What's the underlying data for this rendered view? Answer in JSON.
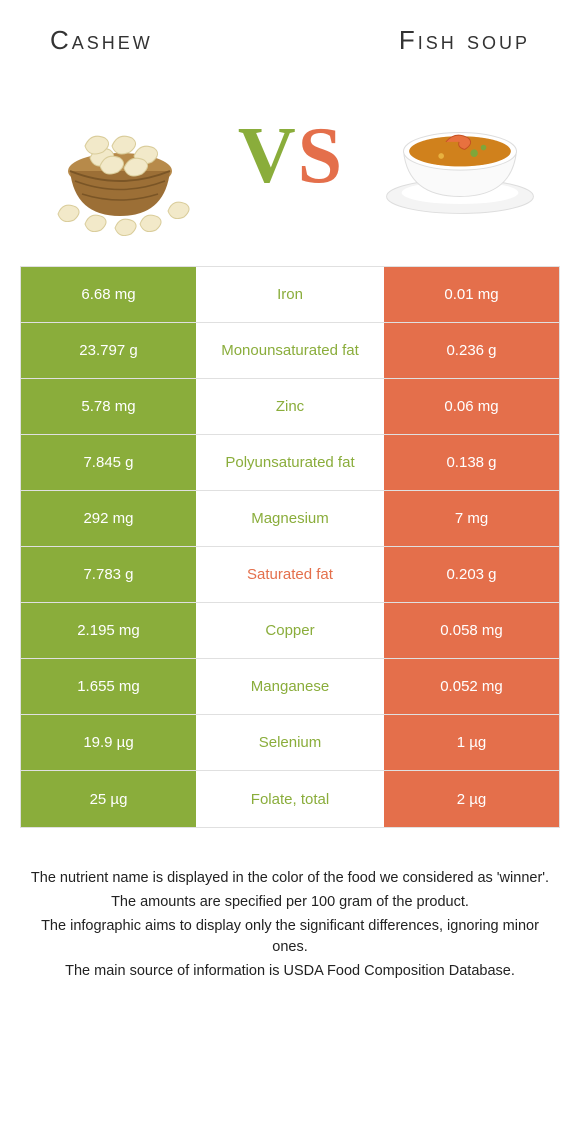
{
  "colors": {
    "left": "#8aad3b",
    "right": "#e46f4b",
    "vs_v": "#8aad3b",
    "vs_s": "#e46f4b"
  },
  "header": {
    "left_title": "Cashew",
    "right_title": "Fish soup"
  },
  "rows": [
    {
      "left": "6.68 mg",
      "mid": "Iron",
      "right": "0.01 mg",
      "winner": "left"
    },
    {
      "left": "23.797 g",
      "mid": "Monounsaturated fat",
      "right": "0.236 g",
      "winner": "left"
    },
    {
      "left": "5.78 mg",
      "mid": "Zinc",
      "right": "0.06 mg",
      "winner": "left"
    },
    {
      "left": "7.845 g",
      "mid": "Polyunsaturated fat",
      "right": "0.138 g",
      "winner": "left"
    },
    {
      "left": "292 mg",
      "mid": "Magnesium",
      "right": "7 mg",
      "winner": "left"
    },
    {
      "left": "7.783 g",
      "mid": "Saturated fat",
      "right": "0.203 g",
      "winner": "right"
    },
    {
      "left": "2.195 mg",
      "mid": "Copper",
      "right": "0.058 mg",
      "winner": "left"
    },
    {
      "left": "1.655 mg",
      "mid": "Manganese",
      "right": "0.052 mg",
      "winner": "left"
    },
    {
      "left": "19.9 µg",
      "mid": "Selenium",
      "right": "1 µg",
      "winner": "left"
    },
    {
      "left": "25 µg",
      "mid": "Folate, total",
      "right": "2 µg",
      "winner": "left"
    }
  ],
  "footnotes": [
    "The nutrient name is displayed in the color of the food we considered as 'winner'.",
    "The amounts are specified per 100 gram of the product.",
    "The infographic aims to display only the significant differences, ignoring minor ones.",
    "The main source of information is USDA Food Composition Database."
  ]
}
